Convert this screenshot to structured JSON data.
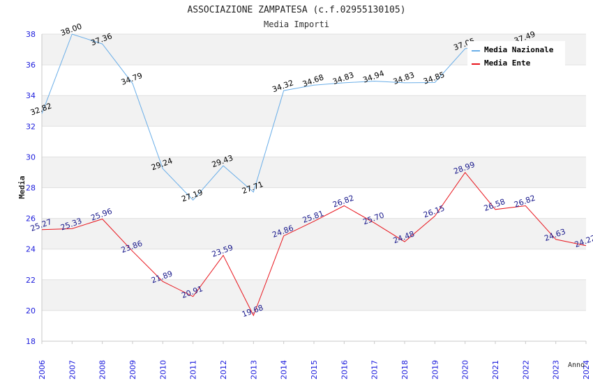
{
  "chart_data": {
    "type": "line",
    "title": "ASSOCIAZIONE ZAMPATESA (c.f.02955130105)",
    "subtitle": "Media Importi",
    "xlabel": "Anno",
    "ylabel": "Media",
    "ylim": [
      18,
      38
    ],
    "y_ticks": [
      18,
      20,
      22,
      24,
      26,
      28,
      30,
      32,
      34,
      36,
      38
    ],
    "grid": true,
    "legend_position": "top-right",
    "x": [
      "2006",
      "2007",
      "2008",
      "2009",
      "2010",
      "2011",
      "2012",
      "2013",
      "2014",
      "2015",
      "2016",
      "2017",
      "2018",
      "2019",
      "2020",
      "2021",
      "2022",
      "2023",
      "2024"
    ],
    "series": [
      {
        "name": "Media Nazionale",
        "color": "#6aaee8",
        "label_color": "#000000",
        "values": [
          32.82,
          38.0,
          37.36,
          34.79,
          29.24,
          27.19,
          29.43,
          27.71,
          34.32,
          34.68,
          34.83,
          34.94,
          34.83,
          34.85,
          37.05,
          null,
          37.49,
          null,
          null
        ],
        "labels": [
          "32.82",
          "38.00",
          "37.36",
          "34.79",
          "29.24",
          "27.19",
          "29.43",
          "27.71",
          "34.32",
          "34.68",
          "34.83",
          "34.94",
          "34.83",
          "34.85",
          "37.05",
          "",
          "37.49",
          "",
          ""
        ]
      },
      {
        "name": "Media Ente",
        "color": "#e8141c",
        "label_color": "#1a1a8c",
        "values": [
          25.27,
          25.33,
          25.96,
          23.86,
          21.89,
          20.91,
          23.59,
          19.68,
          24.86,
          25.81,
          26.82,
          25.7,
          24.48,
          26.15,
          28.99,
          26.58,
          26.82,
          24.63,
          24.22
        ],
        "labels": [
          "25.27",
          "25.33",
          "25.96",
          "23.86",
          "21.89",
          "20.91",
          "23.59",
          "19.68",
          "24.86",
          "25.81",
          "26.82",
          "25.70",
          "24.48",
          "26.15",
          "28.99",
          "26.58",
          "26.82",
          "24.63",
          "24.22"
        ]
      }
    ],
    "colors": {
      "band": "#f2f2f2",
      "grid": "#e0e0e0",
      "axis": "#c8c8c8",
      "tick_text": "#1a1adc"
    }
  }
}
